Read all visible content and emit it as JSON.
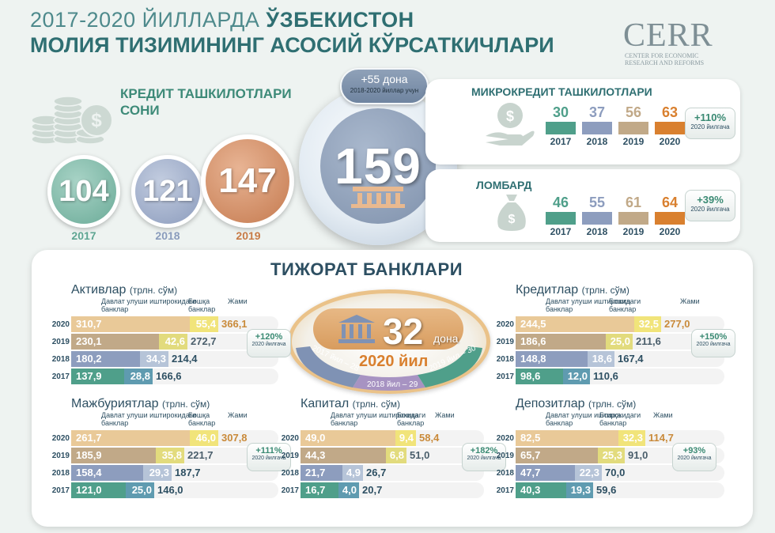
{
  "header": {
    "title_line1_prefix": "2017-2020 ЙИЛЛАРДА",
    "title_line1_bold": "ЎЗБЕКИСТОН",
    "title_line2": "МОЛИЯ ТИЗИМИНИНГ  АСОСИЙ КЎРСАТКИЧЛАРИ",
    "logo_text": "CERR",
    "logo_sub": [
      "CENTER FOR ECONOMIC",
      "RESEARCH AND REFORMS"
    ]
  },
  "kredit_orgs": {
    "title": "КРЕДИТ ТАШКИЛОТЛАРИ СОНИ",
    "circles": [
      {
        "value": "104",
        "year": "2017",
        "color": "#5ea592"
      },
      {
        "value": "121",
        "year": "2018",
        "color": "#8a9cbc"
      },
      {
        "value": "147",
        "year": "2019",
        "color": "#c77b47"
      }
    ],
    "total": "159",
    "pill_value": "+55 дона",
    "pill_caption": "2018-2020  йиллар учун",
    "icons": [
      "coins-icon",
      "bank-icon",
      "dollar-icon"
    ]
  },
  "mikrokredit": {
    "title": "МИКРОКРЕДИТ ТАШКИЛОТЛАРИ",
    "values": [
      "30",
      "37",
      "56",
      "63"
    ],
    "years": [
      "2017",
      "2018",
      "2019",
      "2020"
    ],
    "colors": [
      "#4f9f8a",
      "#8d9dbe",
      "#c1a988",
      "#d9802f"
    ],
    "growth": "+110%",
    "growth_caption": "2020 йилгача"
  },
  "lombard": {
    "title": "ЛОМБАРД",
    "values": [
      "46",
      "55",
      "61",
      "64"
    ],
    "years": [
      "2017",
      "2018",
      "2019",
      "2020"
    ],
    "colors": [
      "#4f9f8a",
      "#8d9dbe",
      "#c1a988",
      "#d9802f"
    ],
    "growth": "+39%",
    "growth_caption": "2020 йилгача"
  },
  "banks": {
    "title": "ТИЖОРАТ БАНКЛАРИ",
    "count": "32",
    "count_unit": "дона",
    "count_year": "2020 йил",
    "segments": [
      "2017 йил – 28",
      "2018 йил – 29",
      "2019 йил – 30"
    ],
    "col_state": "Давлат улуши иштирокидаги банклар",
    "col_other": "Бошқа банклар",
    "col_total": "Жами",
    "years": [
      "2020",
      "2019",
      "2018",
      "2017"
    ],
    "tables": {
      "aktivlar": {
        "title": "Активлар",
        "unit": "(трлн. сўм)",
        "state": [
          "310,7",
          "230,1",
          "180,2",
          "137,9"
        ],
        "other": [
          "55,4",
          "42,6",
          "34,3",
          "28,8"
        ],
        "total": [
          "366,1",
          "272,7",
          "214,4",
          "166,6"
        ],
        "growth": "+120%",
        "growth_caption": "2020 йилгача"
      },
      "kreditlar": {
        "title": "Кредитлар",
        "unit": "(трлн. сўм)",
        "state": [
          "244,5",
          "186,6",
          "148,8",
          "98,6"
        ],
        "other": [
          "32,5",
          "25,0",
          "18,6",
          "12,0"
        ],
        "total": [
          "277,0",
          "211,6",
          "167,4",
          "110,6"
        ],
        "growth": "+150%",
        "growth_caption": "2020 йилгача"
      },
      "majburiyatlar": {
        "title": "Мажбуриятлар",
        "unit": "(трлн. сўм)",
        "state": [
          "261,7",
          "185,9",
          "158,4",
          "121,0"
        ],
        "other": [
          "46,0",
          "35,8",
          "29,3",
          "25,0"
        ],
        "total": [
          "307,8",
          "221,7",
          "187,7",
          "146,0"
        ],
        "growth": "+111%",
        "growth_caption": "2020 йилгача"
      },
      "kapital": {
        "title": "Капитал",
        "unit": "(трлн. сўм)",
        "state": [
          "49,0",
          "44,3",
          "21,7",
          "16,7"
        ],
        "other": [
          "9,4",
          "6,8",
          "4,9",
          "4,0"
        ],
        "total": [
          "58,4",
          "51,0",
          "26,7",
          "20,7"
        ],
        "growth": "+182%",
        "growth_caption": "2020 йилгача"
      },
      "depozitlar": {
        "title": "Депозитлар",
        "unit": "(трлн. сўм)",
        "state": [
          "82,5",
          "65,7",
          "47,7",
          "40,3"
        ],
        "other": [
          "32,3",
          "25,3",
          "22,3",
          "19,3"
        ],
        "total": [
          "114,7",
          "91,0",
          "70,0",
          "59,6"
        ],
        "growth": "+93%",
        "growth_caption": "2020 йилгача"
      }
    }
  }
}
